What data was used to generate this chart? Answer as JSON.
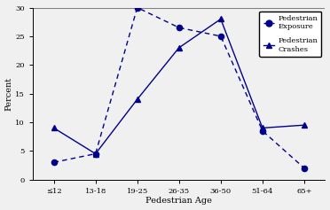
{
  "categories": [
    "≤12",
    "13-18",
    "19-25",
    "26-35",
    "36-50",
    "51-64",
    "65+"
  ],
  "exposure": [
    3,
    4.5,
    30,
    26.5,
    25,
    8.5,
    2
  ],
  "crashes": [
    9,
    4.5,
    14,
    23,
    28,
    9,
    9.5
  ],
  "line_color": "#00008B",
  "xlabel": "Pedestrian Age",
  "ylabel": "Percent",
  "ylim": [
    0,
    30
  ],
  "yticks": [
    0,
    5,
    10,
    15,
    20,
    25,
    30
  ],
  "background_color": "#f0f0f0",
  "fig_background": "#f0f0f0"
}
